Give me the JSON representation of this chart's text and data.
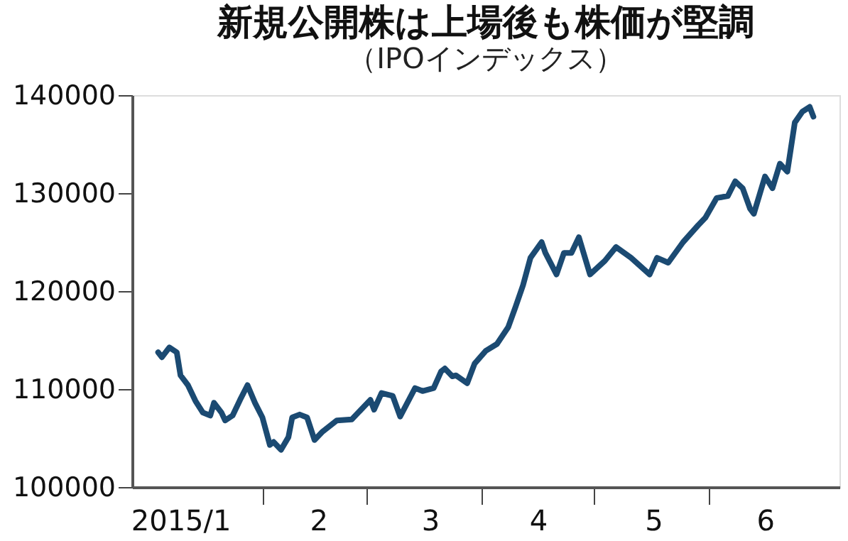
{
  "chart_data": {
    "type": "line",
    "title": "新規公開株は上場後も株価が堅調",
    "subtitle": "（IPOインデックス）",
    "x": [
      "2015-01-04",
      "2015-01-05",
      "2015-01-07",
      "2015-01-09",
      "2015-01-10",
      "2015-01-12",
      "2015-01-14",
      "2015-01-16",
      "2015-01-18",
      "2015-01-19",
      "2015-01-21",
      "2015-01-22",
      "2015-01-24",
      "2015-01-26",
      "2015-01-28",
      "2015-01-30",
      "2015-02-01",
      "2015-02-03",
      "2015-02-04",
      "2015-02-06",
      "2015-02-08",
      "2015-02-09",
      "2015-02-11",
      "2015-02-13",
      "2015-02-15",
      "2015-02-17",
      "2015-02-21",
      "2015-02-25",
      "2015-02-28",
      "2015-03-02",
      "2015-03-03",
      "2015-03-05",
      "2015-03-08",
      "2015-03-10",
      "2015-03-14",
      "2015-03-16",
      "2015-03-19",
      "2015-03-21",
      "2015-03-22",
      "2015-03-24",
      "2015-03-25",
      "2015-03-28",
      "2015-03-30",
      "2015-04-02",
      "2015-04-05",
      "2015-04-08",
      "2015-04-10",
      "2015-04-12",
      "2015-04-14",
      "2015-04-17",
      "2015-04-18",
      "2015-04-21",
      "2015-04-23",
      "2015-04-25",
      "2015-04-27",
      "2015-04-30",
      "2015-05-04",
      "2015-05-07",
      "2015-05-11",
      "2015-05-16",
      "2015-05-18",
      "2015-05-21",
      "2015-05-25",
      "2015-05-29",
      "2015-05-31",
      "2015-06-03",
      "2015-06-06",
      "2015-06-08",
      "2015-06-10",
      "2015-06-12",
      "2015-06-13",
      "2015-06-16",
      "2015-06-18",
      "2015-06-20",
      "2015-06-22",
      "2015-06-24",
      "2015-06-26",
      "2015-06-28",
      "2015-06-29"
    ],
    "series": [
      {
        "color": "#1b4a72",
        "values": [
          113750,
          113250,
          114250,
          113750,
          111400,
          110400,
          108800,
          107600,
          107300,
          108600,
          107600,
          106800,
          107300,
          108900,
          110400,
          108600,
          107100,
          104300,
          104600,
          103800,
          105100,
          107100,
          107400,
          107100,
          104800,
          105600,
          106800,
          106900,
          108100,
          108900,
          107900,
          109600,
          109300,
          107200,
          110100,
          109800,
          110100,
          111800,
          112100,
          111300,
          111400,
          110600,
          112600,
          113900,
          114600,
          116300,
          118400,
          120600,
          123400,
          125000,
          123900,
          121700,
          123900,
          123900,
          125500,
          121700,
          123100,
          124500,
          123400,
          121700,
          123400,
          122900,
          125000,
          126700,
          127500,
          129500,
          129700,
          131200,
          130500,
          128400,
          127900,
          131700,
          130500,
          133000,
          132200,
          137200,
          138300,
          138800,
          137800
        ]
      }
    ],
    "xlim": [
      "2014-12-28",
      "2015-07-06"
    ],
    "xticks": [
      {
        "value": "2015-01-10",
        "label": "2015/1"
      },
      {
        "value": "2015-02-01",
        "label": null
      },
      {
        "value": "2015-02-16",
        "label": "2"
      },
      {
        "value": "2015-03-01",
        "label": null
      },
      {
        "value": "2015-03-18",
        "label": "3"
      },
      {
        "value": "2015-04-01",
        "label": null
      },
      {
        "value": "2015-04-16",
        "label": "4"
      },
      {
        "value": "2015-05-01",
        "label": null
      },
      {
        "value": "2015-05-17",
        "label": "5"
      },
      {
        "value": "2015-06-01",
        "label": null
      },
      {
        "value": "2015-06-16",
        "label": "6"
      }
    ],
    "ylim": [
      100000,
      140000
    ],
    "yticks": [
      100000,
      110000,
      120000,
      130000,
      140000
    ],
    "marker": "none",
    "line_style": "solid"
  }
}
